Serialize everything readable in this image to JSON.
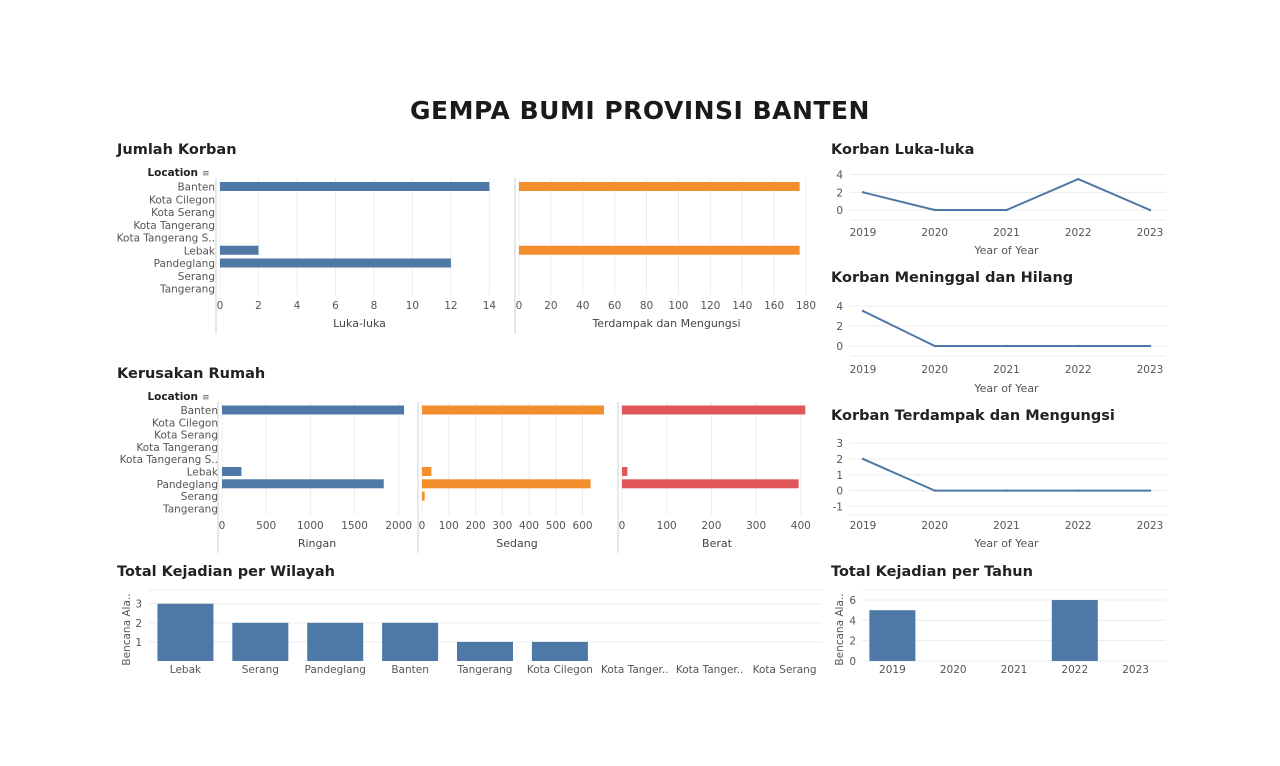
{
  "page": {
    "title": "GEMPA BUMI PROVINSI BANTEN"
  },
  "sections": {
    "jumlah_korban": "Jumlah Korban",
    "kerusakan_rumah": "Kerusakan Rumah",
    "total_wilayah": "Total Kejadian per Wilayah",
    "korban_luka": "Korban Luka-luka",
    "korban_meninggal": "Korban Meninggal dan Hilang",
    "korban_terdampak": "Korban Terdampak dan Mengungsi",
    "total_tahun": "Total Kejadian per Tahun"
  },
  "colors": {
    "blue": "#4e79a7",
    "orange": "#f28e2b",
    "red": "#e15759",
    "grid": "#ececec",
    "axis": "#d0d0d0"
  },
  "chart_data": [
    {
      "id": "jumlah_korban",
      "type": "bar",
      "orientation": "horizontal",
      "row_header": "Location",
      "categories": [
        "Banten",
        "Kota Cilegon",
        "Kota Serang",
        "Kota Tangerang",
        "Kota Tangerang S..",
        "Lebak",
        "Pandeglang",
        "Serang",
        "Tangerang"
      ],
      "panels": [
        {
          "name": "Luka-luka",
          "values": [
            14,
            0,
            0,
            0,
            0,
            2,
            12,
            0,
            0
          ],
          "ticks": [
            0,
            2,
            4,
            6,
            8,
            10,
            12,
            14
          ],
          "xlim": [
            0,
            14.5
          ],
          "color": "#4e79a7"
        },
        {
          "name": "Terdampak dan Mengungsi",
          "values": [
            176,
            0,
            0,
            0,
            0,
            176,
            0,
            0,
            0
          ],
          "ticks": [
            0,
            20,
            40,
            60,
            80,
            100,
            120,
            140,
            160,
            180
          ],
          "xlim": [
            0,
            185
          ],
          "color": "#f28e2b"
        }
      ]
    },
    {
      "id": "kerusakan_rumah",
      "type": "bar",
      "orientation": "horizontal",
      "row_header": "Location",
      "categories": [
        "Banten",
        "Kota Cilegon",
        "Kota Serang",
        "Kota Tangerang",
        "Kota Tangerang S..",
        "Lebak",
        "Pandeglang",
        "Serang",
        "Tangerang"
      ],
      "panels": [
        {
          "name": "Ringan",
          "values": [
            2060,
            0,
            0,
            0,
            0,
            220,
            1830,
            0,
            0
          ],
          "ticks": [
            0,
            500,
            1000,
            1500,
            2000
          ],
          "xlim": [
            0,
            2150
          ],
          "color": "#4e79a7"
        },
        {
          "name": "Sedang",
          "values": [
            680,
            0,
            0,
            0,
            0,
            35,
            630,
            10,
            0
          ],
          "ticks": [
            0,
            100,
            200,
            300,
            400,
            500,
            600
          ],
          "xlim": [
            0,
            710
          ],
          "color": "#f28e2b"
        },
        {
          "name": "Berat",
          "values": [
            410,
            0,
            0,
            0,
            0,
            12,
            395,
            0,
            0
          ],
          "ticks": [
            0,
            100,
            200,
            300,
            400
          ],
          "xlim": [
            0,
            425
          ],
          "color": "#e15759"
        }
      ]
    },
    {
      "id": "total_wilayah",
      "type": "bar",
      "ylabel": "Bencana Ala..",
      "categories": [
        "Lebak",
        "Serang",
        "Pandeglang",
        "Banten",
        "Tangerang",
        "Kota Cilegon",
        "Kota Tanger..",
        "Kota Tanger..",
        "Kota Serang"
      ],
      "values": [
        3,
        2,
        2,
        2,
        1,
        1,
        0,
        0,
        0
      ],
      "ticks": [
        1,
        2,
        3
      ],
      "ylim": [
        0,
        3.3
      ],
      "color": "#4e79a7"
    },
    {
      "id": "korban_luka",
      "type": "line",
      "xlabel": "Year of Year",
      "x": [
        "2019",
        "2020",
        "2021",
        "2022",
        "2023"
      ],
      "values": [
        2,
        0,
        0,
        3.5,
        0
      ],
      "ticks": [
        0,
        2,
        4
      ],
      "ylim": [
        0,
        4.3
      ],
      "color": "#4e79a7"
    },
    {
      "id": "korban_meninggal",
      "type": "line",
      "xlabel": "Year of Year",
      "x": [
        "2019",
        "2020",
        "2021",
        "2022",
        "2023"
      ],
      "values": [
        3.5,
        0,
        0,
        0,
        0
      ],
      "ticks": [
        0,
        2,
        4
      ],
      "ylim": [
        0,
        4.6
      ],
      "color": "#4e79a7"
    },
    {
      "id": "korban_terdampak",
      "type": "line",
      "xlabel": "Year of Year",
      "x": [
        "2019",
        "2020",
        "2021",
        "2022",
        "2023"
      ],
      "values": [
        2,
        0,
        0,
        0,
        0
      ],
      "ticks": [
        -1,
        0,
        1,
        2,
        3
      ],
      "ylim": [
        -1.1,
        3.2
      ],
      "color": "#4e79a7"
    },
    {
      "id": "total_tahun",
      "type": "bar",
      "ylabel": "Bencana Ala..",
      "categories": [
        "2019",
        "2020",
        "2021",
        "2022",
        "2023"
      ],
      "values": [
        5,
        0,
        0,
        6,
        0
      ],
      "ticks": [
        0,
        2,
        4,
        6
      ],
      "ylim": [
        0,
        6.2
      ],
      "color": "#4e79a7"
    }
  ]
}
